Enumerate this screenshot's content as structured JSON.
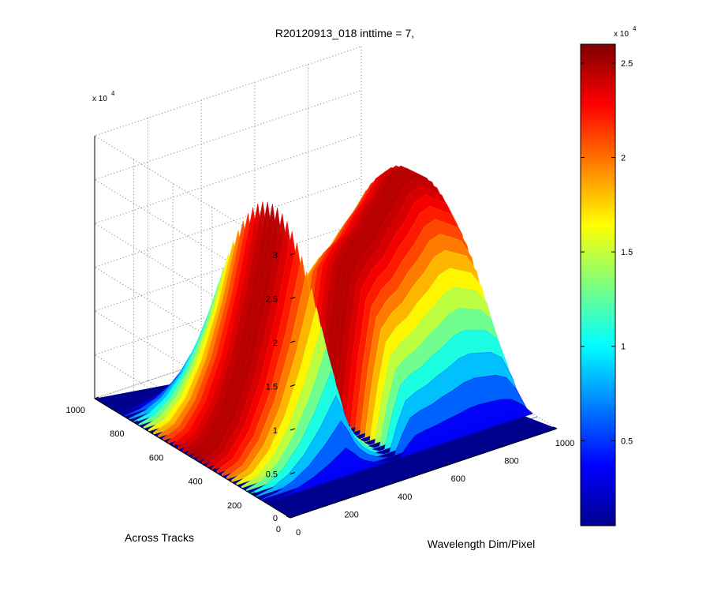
{
  "chart_data": {
    "type": "surface",
    "title": "R20120913_018 inttime = 7,",
    "xlabel": "Wavelength Dim/Pixel",
    "ylabel": "Across Tracks",
    "x_ticks": [
      "0",
      "200",
      "400",
      "600",
      "800",
      "1000"
    ],
    "y_ticks": [
      "0",
      "200",
      "400",
      "600",
      "800",
      "1000"
    ],
    "z_ticks": [
      "0",
      "0.5",
      "1",
      "1.5",
      "2",
      "2.5",
      "3"
    ],
    "z_exponent": "x 10",
    "z_exponent_power": "4",
    "xlim": [
      0,
      1000
    ],
    "ylim": [
      0,
      1000
    ],
    "zlim": [
      0,
      30000
    ],
    "grid": true,
    "colormap": "jet",
    "colorbar": {
      "ticks": [
        "0.5",
        "1",
        "1.5",
        "2",
        "2.5"
      ],
      "exponent": "x 10",
      "exponent_power": "4",
      "range": [
        500,
        26000
      ]
    },
    "profile": {
      "x": [
        0,
        60,
        120,
        180,
        240,
        300,
        330,
        350,
        370,
        400,
        430,
        460,
        480,
        500,
        530,
        560,
        600,
        640,
        680,
        720,
        760,
        800,
        840,
        880,
        920,
        960,
        1000
      ],
      "z_max": [
        300,
        1200,
        4000,
        9000,
        16500,
        26000,
        19000,
        13000,
        9000,
        5000,
        2500,
        800,
        0,
        0,
        9000,
        16000,
        18000,
        19000,
        21000,
        22500,
        24500,
        25000,
        24000,
        23000,
        20000,
        12000,
        300
      ]
    }
  }
}
